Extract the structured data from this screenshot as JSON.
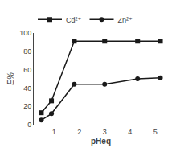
{
  "chart_data": {
    "type": "line",
    "x_label": "pHeq",
    "y_label": "E%",
    "x": [
      0.5,
      0.9,
      1.8,
      3.0,
      4.3,
      5.2
    ],
    "series": [
      {
        "name": "Cd²⁺",
        "color": "#1a1a1a",
        "marker": "square",
        "values": [
          13,
          26,
          91,
          91,
          91,
          91
        ]
      },
      {
        "name": "Zn²⁺",
        "color": "#1a1a1a",
        "marker": "circle",
        "values": [
          5,
          12,
          44,
          44,
          50,
          51
        ]
      }
    ],
    "xlim": [
      0.2,
      5.5
    ],
    "ylim": [
      0,
      100
    ],
    "xticks": [
      1,
      2,
      3,
      4,
      5
    ],
    "yticks": [
      0,
      20,
      40,
      60,
      80,
      100
    ],
    "grid": false,
    "legend": "upper left"
  }
}
